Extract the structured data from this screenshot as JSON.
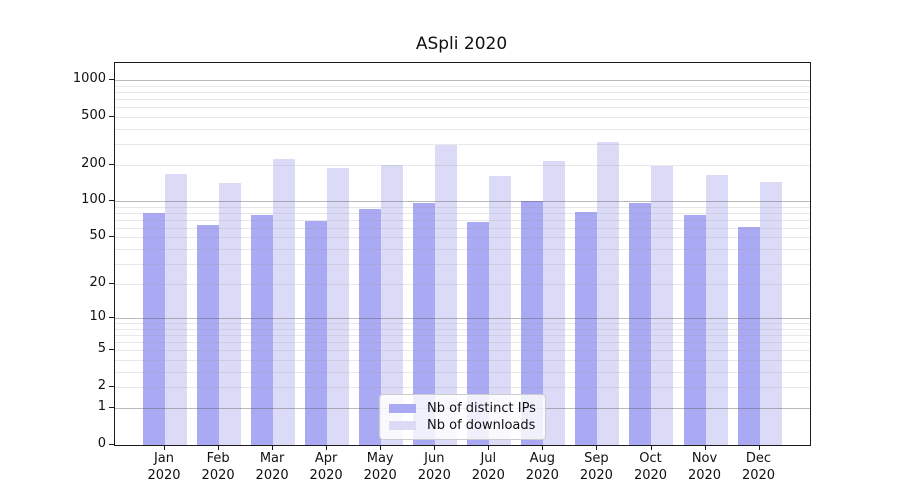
{
  "chart_data": {
    "type": "bar",
    "title": "ASpli 2020",
    "categories": [
      "Jan",
      "Feb",
      "Mar",
      "Apr",
      "May",
      "Jun",
      "Jul",
      "Aug",
      "Sep",
      "Oct",
      "Nov",
      "Dec"
    ],
    "year": "2020",
    "series": [
      {
        "name": "Nb of distinct IPs",
        "color": "#a9a9f4",
        "values": [
          80,
          64,
          77,
          69,
          86,
          97,
          68,
          100,
          81,
          97,
          77,
          61
        ]
      },
      {
        "name": "Nb of downloads",
        "color": "#dbdbf8",
        "values": [
          168,
          143,
          226,
          189,
          199,
          294,
          162,
          216,
          310,
          196,
          164,
          144
        ]
      }
    ],
    "yscale": "log10(value+1)",
    "yticks": [
      1000,
      500,
      200,
      100,
      50,
      20,
      10,
      5,
      2,
      1,
      0
    ],
    "minor_gridlines": [
      2,
      3,
      4,
      5,
      6,
      7,
      8,
      9,
      20,
      30,
      40,
      50,
      60,
      70,
      80,
      90,
      200,
      300,
      400,
      500,
      600,
      700,
      800,
      900
    ],
    "major_gridlines": [
      1,
      10,
      100,
      1000
    ],
    "ylim": [
      0,
      1390
    ],
    "xlabel": "",
    "ylabel": "",
    "grid": "horizontal, drawn over bars",
    "legend_position": "lower center"
  },
  "legend": {
    "items": [
      {
        "label": "Nb of distinct IPs",
        "color": "#a9a9f4"
      },
      {
        "label": "Nb of downloads",
        "color": "#dbdbf8"
      }
    ]
  }
}
